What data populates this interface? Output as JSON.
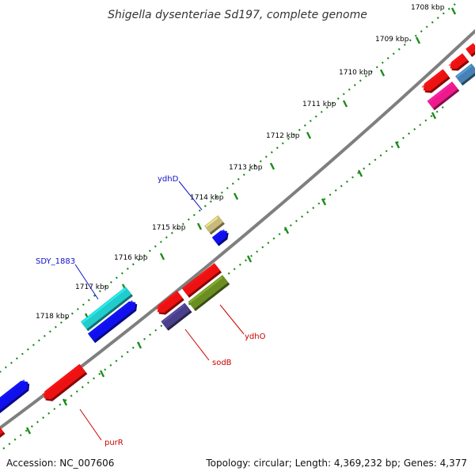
{
  "title": "Shigella dysenteriae Sd197, complete genome",
  "ruler": {
    "labels": [
      "1708 kbp",
      "1709 kbp",
      "1710 kbp",
      "1711 kbp",
      "1712 kbp",
      "1713 kbp",
      "1714 kbp",
      "1715 kbp",
      "1716 kbp",
      "1717 kbp",
      "1718 kbp"
    ]
  },
  "gene_labels": {
    "ydhD": "ydhD",
    "sdy1883": "SDY_1883",
    "ydhO": "ydhO",
    "sodB": "sodB",
    "purR": "purR"
  },
  "footer": {
    "accession": "Accession: NC_007606",
    "summary": "Topology: circular; Length: 4,369,232 bp; Genes: 4,377"
  },
  "colors": {
    "backbone": "#7f7f7f",
    "ticks": "#1a8a1a",
    "red": "#ee1111",
    "blue": "#1010ee",
    "cyan": "#22cccc",
    "khaki": "#c8bb7a",
    "olive": "#6b8e23",
    "slate": "#4a3f8a",
    "magenta": "#ee1a8c",
    "steelblue": "#4682b4",
    "label_blue": "#1010cc",
    "label_red": "#cc0000"
  }
}
